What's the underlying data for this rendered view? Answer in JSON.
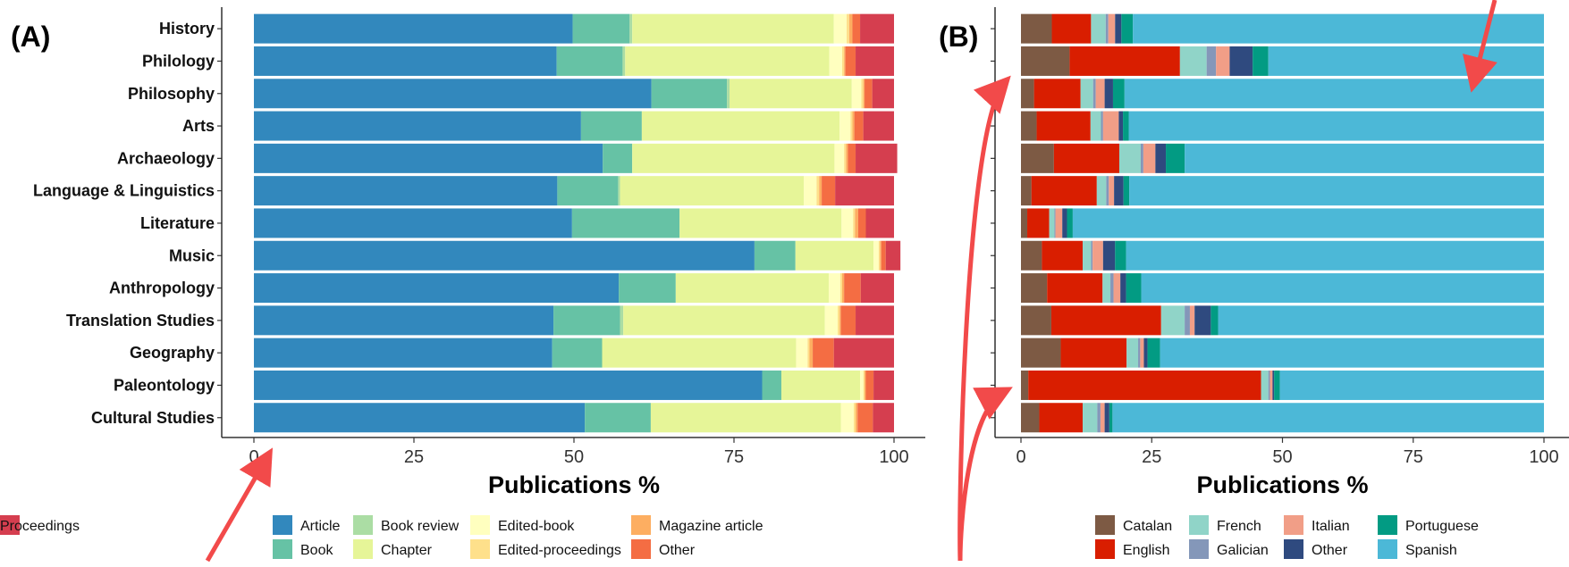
{
  "chart_data": [
    {
      "type": "bar",
      "stacked": true,
      "orientation": "horizontal",
      "panel_label": "(A)",
      "xlabel": "Publications %",
      "xlim": [
        0,
        100
      ],
      "xticks": [
        0,
        25,
        50,
        75,
        100
      ],
      "grid": false,
      "legend_position": "bottom",
      "categories": [
        "History",
        "Philology",
        "Philosophy",
        "Arts",
        "Archaeology",
        "Language & Linguistics",
        "Literature",
        "Music",
        "Anthropology",
        "Translation Studies",
        "Geography",
        "Paleontology",
        "Cultural Studies"
      ],
      "series": [
        {
          "name": "Article",
          "color": "#3288bd",
          "values": [
            49.8,
            47.3,
            62.1,
            51.1,
            54.5,
            47.4,
            49.7,
            78.2,
            57.0,
            46.8,
            46.6,
            79.4,
            51.7
          ]
        },
        {
          "name": "Book",
          "color": "#66c2a5",
          "values": [
            8.9,
            10.3,
            11.8,
            9.5,
            4.6,
            9.5,
            16.8,
            6.4,
            8.9,
            10.4,
            7.8,
            3.0,
            10.3
          ]
        },
        {
          "name": "Book review",
          "color": "#abdda4",
          "values": [
            0.4,
            0.4,
            0.4,
            0.0,
            0.0,
            0.3,
            0.0,
            0.0,
            0.0,
            0.5,
            0.0,
            0.0,
            0.0
          ]
        },
        {
          "name": "Chapter",
          "color": "#e6f598",
          "values": [
            31.5,
            31.9,
            19.1,
            30.9,
            31.6,
            28.7,
            25.3,
            12.2,
            23.9,
            31.5,
            30.3,
            12.3,
            29.7
          ]
        },
        {
          "name": "Edited-book",
          "color": "#ffffbf",
          "values": [
            2.0,
            2.0,
            1.5,
            1.7,
            1.5,
            2.0,
            1.8,
            0.8,
            1.8,
            2.0,
            1.8,
            0.5,
            2.0
          ]
        },
        {
          "name": "Edited-proceedings",
          "color": "#fee08b",
          "values": [
            0.4,
            0.3,
            0.3,
            0.3,
            0.3,
            0.4,
            0.3,
            0.2,
            0.3,
            0.3,
            0.3,
            0.2,
            0.3
          ]
        },
        {
          "name": "Magazine article",
          "color": "#fdae61",
          "values": [
            0.5,
            0.2,
            0.2,
            0.3,
            0.3,
            0.4,
            0.5,
            0.2,
            0.3,
            0.2,
            0.5,
            0.2,
            0.3
          ]
        },
        {
          "name": "Other",
          "color": "#f46d43",
          "values": [
            1.2,
            1.6,
            1.2,
            1.4,
            1.2,
            2.1,
            1.2,
            0.7,
            2.6,
            2.3,
            3.3,
            1.2,
            2.4
          ]
        },
        {
          "name": "Proceedings",
          "color": "#d53e4f",
          "values": [
            5.3,
            6.0,
            3.4,
            4.8,
            6.5,
            9.2,
            4.4,
            2.3,
            5.2,
            6.0,
            9.4,
            3.2,
            3.3
          ]
        }
      ]
    },
    {
      "type": "bar",
      "stacked": true,
      "orientation": "horizontal",
      "panel_label": "(B)",
      "xlabel": "Publications %",
      "xlim": [
        0,
        100
      ],
      "xticks": [
        0,
        25,
        50,
        75,
        100
      ],
      "grid": false,
      "legend_position": "bottom",
      "categories": [
        "History",
        "Philology",
        "Philosophy",
        "Arts",
        "Archaeology",
        "Language & Linguistics",
        "Literature",
        "Music",
        "Anthropology",
        "Translation Studies",
        "Geography",
        "Paleontology",
        "Cultural Studies"
      ],
      "series": [
        {
          "name": "Catalan",
          "color": "#7d5a44",
          "values": [
            5.9,
            9.3,
            2.5,
            3.0,
            6.3,
            2.0,
            1.2,
            4.0,
            5.0,
            5.8,
            7.6,
            1.4,
            3.5
          ]
        },
        {
          "name": "English",
          "color": "#d91e00",
          "values": [
            7.5,
            21.1,
            8.9,
            10.3,
            12.5,
            12.5,
            4.2,
            7.8,
            10.6,
            21.0,
            12.6,
            44.5,
            8.3
          ]
        },
        {
          "name": "French",
          "color": "#90d4c8",
          "values": [
            2.8,
            5.1,
            2.4,
            2.0,
            4.1,
            1.8,
            1.0,
            1.6,
            1.5,
            4.5,
            2.2,
            1.4,
            2.8
          ]
        },
        {
          "name": "Galician",
          "color": "#8497b9",
          "values": [
            0.5,
            1.8,
            0.5,
            0.4,
            0.5,
            0.5,
            0.2,
            0.3,
            0.6,
            1.0,
            0.4,
            0.3,
            0.6
          ]
        },
        {
          "name": "Italian",
          "color": "#f19e87",
          "values": [
            1.3,
            2.6,
            1.7,
            3.0,
            2.3,
            1.0,
            1.3,
            2.0,
            1.3,
            0.9,
            0.7,
            0.5,
            0.8
          ]
        },
        {
          "name": "Other",
          "color": "#2f4a7f",
          "values": [
            1.2,
            4.4,
            1.6,
            0.8,
            2.0,
            1.8,
            0.9,
            2.3,
            1.1,
            3.1,
            0.7,
            0.3,
            0.9
          ]
        },
        {
          "name": "Portuguese",
          "color": "#029b83",
          "values": [
            2.2,
            3.0,
            2.2,
            1.1,
            3.6,
            1.1,
            1.1,
            2.1,
            2.9,
            1.4,
            2.4,
            1.1,
            0.6
          ]
        },
        {
          "name": "Spanish",
          "color": "#4cb8d7",
          "values": [
            78.6,
            52.7,
            80.2,
            79.4,
            68.7,
            79.3,
            90.1,
            79.9,
            77.0,
            62.3,
            73.4,
            50.5,
            82.5
          ]
        }
      ]
    }
  ]
}
